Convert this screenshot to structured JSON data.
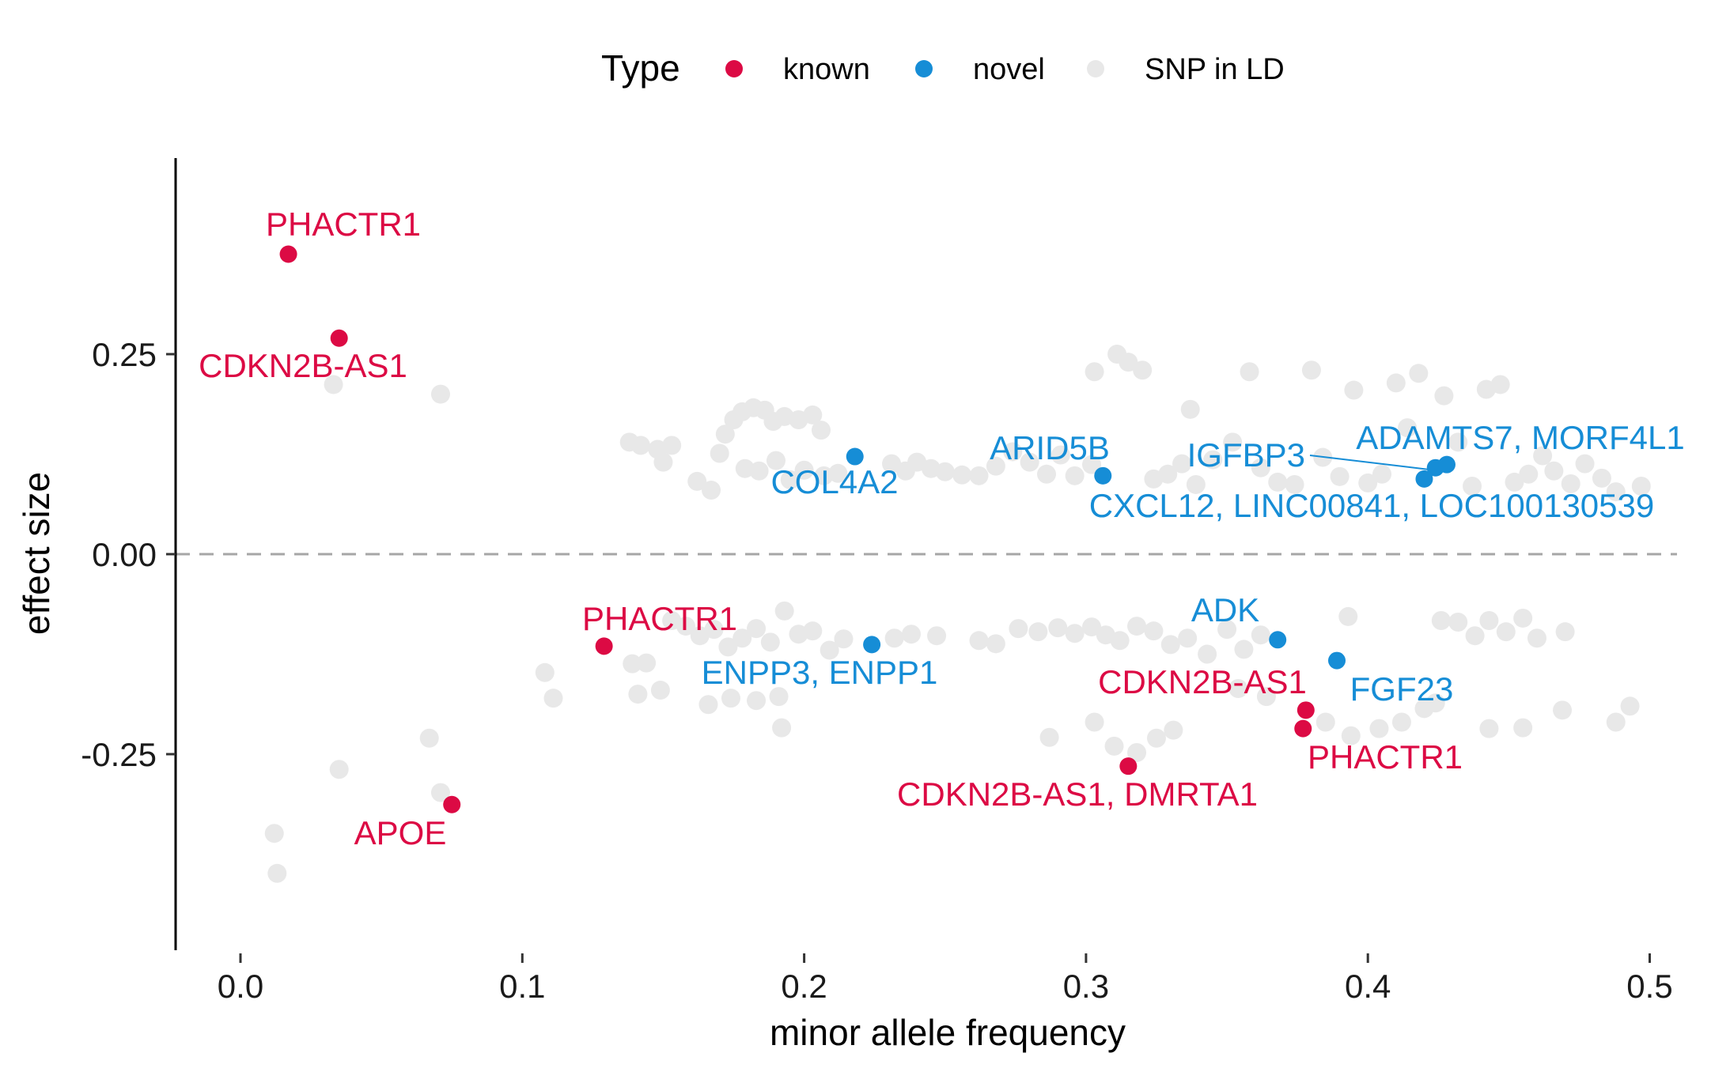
{
  "chart_data": {
    "type": "scatter",
    "title": "",
    "xlabel": "minor allele frequency",
    "ylabel": "effect size",
    "xlim": [
      -0.025,
      0.51
    ],
    "ylim": [
      -0.49,
      0.49
    ],
    "x_ticks": [
      0.0,
      0.1,
      0.2,
      0.3,
      0.4,
      0.5
    ],
    "x_tick_labels": [
      "0.0",
      "0.1",
      "0.2",
      "0.3",
      "0.4",
      "0.5"
    ],
    "y_ticks": [
      0.25,
      0.0,
      -0.25
    ],
    "y_tick_labels": [
      "0.25",
      "0.00",
      "-0.25"
    ],
    "reference_line": {
      "y": 0,
      "style": "dashed"
    },
    "grid": false,
    "legend": {
      "title": "Type",
      "position": "top",
      "entries": [
        {
          "name": "known",
          "color": "#dc0a44"
        },
        {
          "name": "novel",
          "color": "#168dd6"
        },
        {
          "name": "SNP in LD",
          "color": "#e8e8e8"
        }
      ]
    },
    "series": [
      {
        "name": "known",
        "color": "#dc0a44",
        "points": [
          {
            "x": 0.017,
            "y": 0.375,
            "label": "PHACTR1"
          },
          {
            "x": 0.035,
            "y": 0.27,
            "label": "CDKN2B-AS1"
          },
          {
            "x": 0.129,
            "y": -0.115,
            "label": "PHACTR1"
          },
          {
            "x": 0.075,
            "y": -0.313,
            "label": "APOE"
          },
          {
            "x": 0.378,
            "y": -0.195,
            "label": "CDKN2B-AS1"
          },
          {
            "x": 0.377,
            "y": -0.218,
            "label": "PHACTR1"
          },
          {
            "x": 0.315,
            "y": -0.265,
            "label": "CDKN2B-AS1, DMRTA1"
          }
        ]
      },
      {
        "name": "novel",
        "color": "#168dd6",
        "points": [
          {
            "x": 0.218,
            "y": 0.122,
            "label": "COL4A2"
          },
          {
            "x": 0.306,
            "y": 0.098,
            "label": "ARID5B"
          },
          {
            "x": 0.424,
            "y": 0.108,
            "label": "IGFBP3"
          },
          {
            "x": 0.428,
            "y": 0.112,
            "label": "ADAMTS7, MORF4L1"
          },
          {
            "x": 0.42,
            "y": 0.094,
            "label": "CXCL12, LINC00841, LOC100130539"
          },
          {
            "x": 0.224,
            "y": -0.113,
            "label": "ENPP3, ENPP1"
          },
          {
            "x": 0.368,
            "y": -0.107,
            "label": "ADK"
          },
          {
            "x": 0.389,
            "y": -0.133,
            "label": "FGF23"
          }
        ]
      },
      {
        "name": "SNP in LD",
        "color": "#e8e8e8",
        "points": [
          {
            "x": 0.033,
            "y": 0.212
          },
          {
            "x": 0.071,
            "y": 0.2
          },
          {
            "x": 0.012,
            "y": -0.349
          },
          {
            "x": 0.013,
            "y": -0.399
          },
          {
            "x": 0.035,
            "y": -0.269
          },
          {
            "x": 0.067,
            "y": -0.23
          },
          {
            "x": 0.071,
            "y": -0.298
          },
          {
            "x": 0.108,
            "y": -0.148
          },
          {
            "x": 0.111,
            "y": -0.18
          },
          {
            "x": 0.138,
            "y": 0.14
          },
          {
            "x": 0.142,
            "y": 0.136
          },
          {
            "x": 0.148,
            "y": 0.131
          },
          {
            "x": 0.15,
            "y": 0.115
          },
          {
            "x": 0.153,
            "y": 0.136
          },
          {
            "x": 0.162,
            "y": 0.091
          },
          {
            "x": 0.167,
            "y": 0.08
          },
          {
            "x": 0.17,
            "y": 0.126
          },
          {
            "x": 0.172,
            "y": 0.15
          },
          {
            "x": 0.175,
            "y": 0.168
          },
          {
            "x": 0.178,
            "y": 0.178
          },
          {
            "x": 0.182,
            "y": 0.183
          },
          {
            "x": 0.186,
            "y": 0.18
          },
          {
            "x": 0.189,
            "y": 0.166
          },
          {
            "x": 0.193,
            "y": 0.172
          },
          {
            "x": 0.198,
            "y": 0.168
          },
          {
            "x": 0.203,
            "y": 0.174
          },
          {
            "x": 0.206,
            "y": 0.155
          },
          {
            "x": 0.179,
            "y": 0.107
          },
          {
            "x": 0.184,
            "y": 0.104
          },
          {
            "x": 0.19,
            "y": 0.117
          },
          {
            "x": 0.195,
            "y": 0.093
          },
          {
            "x": 0.2,
            "y": 0.105
          },
          {
            "x": 0.207,
            "y": 0.098
          },
          {
            "x": 0.212,
            "y": 0.101
          },
          {
            "x": 0.231,
            "y": 0.113
          },
          {
            "x": 0.236,
            "y": 0.104
          },
          {
            "x": 0.24,
            "y": 0.115
          },
          {
            "x": 0.245,
            "y": 0.107
          },
          {
            "x": 0.25,
            "y": 0.103
          },
          {
            "x": 0.256,
            "y": 0.099
          },
          {
            "x": 0.262,
            "y": 0.098
          },
          {
            "x": 0.268,
            "y": 0.11
          },
          {
            "x": 0.274,
            "y": 0.128
          },
          {
            "x": 0.28,
            "y": 0.115
          },
          {
            "x": 0.286,
            "y": 0.1
          },
          {
            "x": 0.291,
            "y": 0.124
          },
          {
            "x": 0.296,
            "y": 0.098
          },
          {
            "x": 0.302,
            "y": 0.112
          },
          {
            "x": 0.303,
            "y": 0.228
          },
          {
            "x": 0.311,
            "y": 0.25
          },
          {
            "x": 0.315,
            "y": 0.24
          },
          {
            "x": 0.32,
            "y": 0.23
          },
          {
            "x": 0.324,
            "y": 0.094
          },
          {
            "x": 0.329,
            "y": 0.1
          },
          {
            "x": 0.334,
            "y": 0.113
          },
          {
            "x": 0.339,
            "y": 0.087
          },
          {
            "x": 0.337,
            "y": 0.181
          },
          {
            "x": 0.345,
            "y": 0.118
          },
          {
            "x": 0.352,
            "y": 0.14
          },
          {
            "x": 0.358,
            "y": 0.228
          },
          {
            "x": 0.362,
            "y": 0.108
          },
          {
            "x": 0.368,
            "y": 0.09
          },
          {
            "x": 0.374,
            "y": 0.087
          },
          {
            "x": 0.38,
            "y": 0.23
          },
          {
            "x": 0.384,
            "y": 0.121
          },
          {
            "x": 0.39,
            "y": 0.097
          },
          {
            "x": 0.395,
            "y": 0.205
          },
          {
            "x": 0.4,
            "y": 0.089
          },
          {
            "x": 0.405,
            "y": 0.1
          },
          {
            "x": 0.41,
            "y": 0.214
          },
          {
            "x": 0.414,
            "y": 0.158
          },
          {
            "x": 0.418,
            "y": 0.226
          },
          {
            "x": 0.427,
            "y": 0.198
          },
          {
            "x": 0.432,
            "y": 0.14
          },
          {
            "x": 0.437,
            "y": 0.085
          },
          {
            "x": 0.442,
            "y": 0.206
          },
          {
            "x": 0.447,
            "y": 0.212
          },
          {
            "x": 0.452,
            "y": 0.09
          },
          {
            "x": 0.457,
            "y": 0.1
          },
          {
            "x": 0.462,
            "y": 0.123
          },
          {
            "x": 0.466,
            "y": 0.104
          },
          {
            "x": 0.472,
            "y": 0.088
          },
          {
            "x": 0.477,
            "y": 0.113
          },
          {
            "x": 0.483,
            "y": 0.095
          },
          {
            "x": 0.488,
            "y": 0.078
          },
          {
            "x": 0.497,
            "y": 0.085
          },
          {
            "x": 0.139,
            "y": -0.137
          },
          {
            "x": 0.144,
            "y": -0.136
          },
          {
            "x": 0.141,
            "y": -0.175
          },
          {
            "x": 0.149,
            "y": -0.17
          },
          {
            "x": 0.153,
            "y": -0.083
          },
          {
            "x": 0.158,
            "y": -0.09
          },
          {
            "x": 0.163,
            "y": -0.102
          },
          {
            "x": 0.168,
            "y": -0.094
          },
          {
            "x": 0.173,
            "y": -0.116
          },
          {
            "x": 0.178,
            "y": -0.105
          },
          {
            "x": 0.183,
            "y": -0.093
          },
          {
            "x": 0.188,
            "y": -0.11
          },
          {
            "x": 0.193,
            "y": -0.071
          },
          {
            "x": 0.198,
            "y": -0.1
          },
          {
            "x": 0.203,
            "y": -0.096
          },
          {
            "x": 0.209,
            "y": -0.12
          },
          {
            "x": 0.166,
            "y": -0.188
          },
          {
            "x": 0.174,
            "y": -0.18
          },
          {
            "x": 0.183,
            "y": -0.183
          },
          {
            "x": 0.191,
            "y": -0.178
          },
          {
            "x": 0.192,
            "y": -0.217
          },
          {
            "x": 0.214,
            "y": -0.106
          },
          {
            "x": 0.232,
            "y": -0.105
          },
          {
            "x": 0.238,
            "y": -0.1
          },
          {
            "x": 0.247,
            "y": -0.102
          },
          {
            "x": 0.262,
            "y": -0.108
          },
          {
            "x": 0.268,
            "y": -0.112
          },
          {
            "x": 0.276,
            "y": -0.093
          },
          {
            "x": 0.283,
            "y": -0.097
          },
          {
            "x": 0.29,
            "y": -0.092
          },
          {
            "x": 0.296,
            "y": -0.099
          },
          {
            "x": 0.302,
            "y": -0.091
          },
          {
            "x": 0.307,
            "y": -0.101
          },
          {
            "x": 0.312,
            "y": -0.108
          },
          {
            "x": 0.318,
            "y": -0.09
          },
          {
            "x": 0.324,
            "y": -0.096
          },
          {
            "x": 0.33,
            "y": -0.113
          },
          {
            "x": 0.336,
            "y": -0.105
          },
          {
            "x": 0.343,
            "y": -0.125
          },
          {
            "x": 0.35,
            "y": -0.094
          },
          {
            "x": 0.356,
            "y": -0.119
          },
          {
            "x": 0.362,
            "y": -0.101
          },
          {
            "x": 0.287,
            "y": -0.229
          },
          {
            "x": 0.303,
            "y": -0.21
          },
          {
            "x": 0.31,
            "y": -0.24
          },
          {
            "x": 0.318,
            "y": -0.248
          },
          {
            "x": 0.325,
            "y": -0.23
          },
          {
            "x": 0.331,
            "y": -0.22
          },
          {
            "x": 0.354,
            "y": -0.168
          },
          {
            "x": 0.364,
            "y": -0.178
          },
          {
            "x": 0.385,
            "y": -0.21
          },
          {
            "x": 0.394,
            "y": -0.227
          },
          {
            "x": 0.393,
            "y": -0.078
          },
          {
            "x": 0.404,
            "y": -0.218
          },
          {
            "x": 0.412,
            "y": -0.21
          },
          {
            "x": 0.42,
            "y": -0.193
          },
          {
            "x": 0.426,
            "y": -0.083
          },
          {
            "x": 0.432,
            "y": -0.085
          },
          {
            "x": 0.438,
            "y": -0.102
          },
          {
            "x": 0.443,
            "y": -0.083
          },
          {
            "x": 0.449,
            "y": -0.097
          },
          {
            "x": 0.455,
            "y": -0.08
          },
          {
            "x": 0.46,
            "y": -0.105
          },
          {
            "x": 0.47,
            "y": -0.097
          },
          {
            "x": 0.424,
            "y": -0.186
          },
          {
            "x": 0.443,
            "y": -0.218
          },
          {
            "x": 0.455,
            "y": -0.217
          },
          {
            "x": 0.469,
            "y": -0.195
          },
          {
            "x": 0.488,
            "y": -0.21
          },
          {
            "x": 0.493,
            "y": -0.19
          }
        ]
      }
    ]
  }
}
